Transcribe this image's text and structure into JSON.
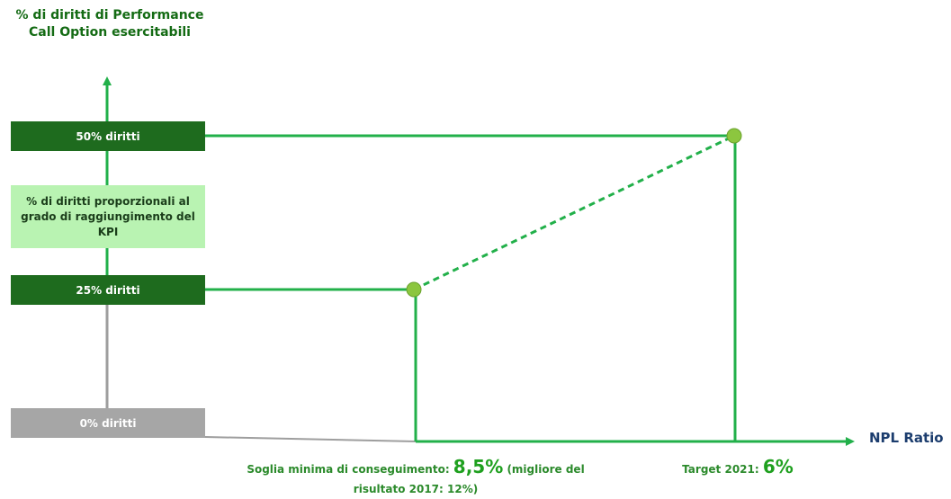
{
  "y_axis": {
    "title": "% di diritti di Performance Call Option esercitabili"
  },
  "x_axis": {
    "label": "NPL Ratio"
  },
  "levels": {
    "top": "50% diritti",
    "proportional": "% di diritti proporzionali al grado di raggiungimento del KPI",
    "mid": "25% diritti",
    "zero": "0% diritti"
  },
  "annotations": {
    "threshold_prefix": "Soglia minima di conseguimento: ",
    "threshold_value": "8,5%",
    "threshold_suffix": " (migliore del risultato 2017: 12%)",
    "target_prefix": "Target 2021: ",
    "target_value": "6%"
  },
  "colors": {
    "line_green": "#22b04a",
    "dark_green": "#1e6b1e",
    "light_green": "#b9f3b2",
    "gray": "#a6a6a6",
    "point_fill": "#8cc63f"
  }
}
